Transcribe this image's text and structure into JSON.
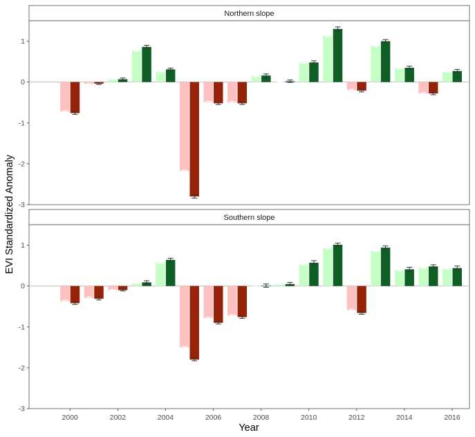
{
  "chart_data": {
    "type": "bar",
    "ylabel": "EVI Standardized Anomaly",
    "xlabel": "Year",
    "ylim": [
      -3,
      1.5
    ],
    "yticks": [
      -3,
      -2,
      -1,
      0,
      1
    ],
    "x_tick_labels": [
      "2000",
      "2002",
      "2004",
      "2006",
      "2008",
      "2010",
      "2012",
      "2014",
      "2016"
    ],
    "years": [
      2000,
      2001,
      2002,
      2003,
      2004,
      2005,
      2006,
      2007,
      2008,
      2009,
      2010,
      2011,
      2012,
      2013,
      2014,
      2015,
      2016
    ],
    "colors": {
      "neg_light": "#FFC0C0",
      "neg_dark": "#97220A",
      "pos_light": "#C6FFC6",
      "pos_dark": "#0F5E26"
    },
    "panels": [
      {
        "title": "Northern slope",
        "series": [
          {
            "values": [
              -0.72,
              -0.05,
              0.07,
              0.77,
              0.26,
              -2.17,
              -0.49,
              -0.5,
              0.15,
              0.01,
              0.47,
              1.13,
              -0.2,
              0.89,
              0.34,
              -0.28,
              0.25
            ],
            "errors": [
              0.02,
              0.01,
              0.01,
              0.02,
              0.01,
              0.02,
              0.02,
              0.02,
              0.02,
              0.01,
              0.02,
              0.02,
              0.02,
              0.02,
              0.01,
              0.02,
              0.01
            ]
          },
          {
            "values": [
              -0.76,
              -0.04,
              0.07,
              0.86,
              0.31,
              -2.8,
              -0.52,
              -0.52,
              0.16,
              0.02,
              0.48,
              1.3,
              -0.21,
              1.0,
              0.35,
              -0.28,
              0.27
            ],
            "errors": [
              0.03,
              0.02,
              0.03,
              0.04,
              0.03,
              0.04,
              0.03,
              0.03,
              0.04,
              0.03,
              0.04,
              0.05,
              0.03,
              0.04,
              0.04,
              0.03,
              0.04
            ]
          }
        ]
      },
      {
        "title": "Southern slope",
        "series": [
          {
            "values": [
              -0.37,
              -0.29,
              -0.1,
              0.07,
              0.57,
              -1.5,
              -0.78,
              -0.72,
              0.02,
              0.05,
              0.53,
              0.93,
              -0.59,
              0.86,
              0.39,
              0.45,
              0.43
            ],
            "errors": [
              0.02,
              0.02,
              0.01,
              0.01,
              0.02,
              0.02,
              0.02,
              0.02,
              0.01,
              0.01,
              0.02,
              0.02,
              0.02,
              0.02,
              0.02,
              0.02,
              0.02
            ]
          },
          {
            "values": [
              -0.42,
              -0.31,
              -0.1,
              0.09,
              0.64,
              -1.8,
              -0.9,
              -0.76,
              0.01,
              0.05,
              0.57,
              1.01,
              -0.66,
              0.94,
              0.41,
              0.48,
              0.44
            ],
            "errors": [
              0.03,
              0.03,
              0.02,
              0.04,
              0.04,
              0.03,
              0.03,
              0.03,
              0.04,
              0.04,
              0.05,
              0.04,
              0.03,
              0.04,
              0.05,
              0.04,
              0.05
            ]
          }
        ]
      }
    ]
  }
}
